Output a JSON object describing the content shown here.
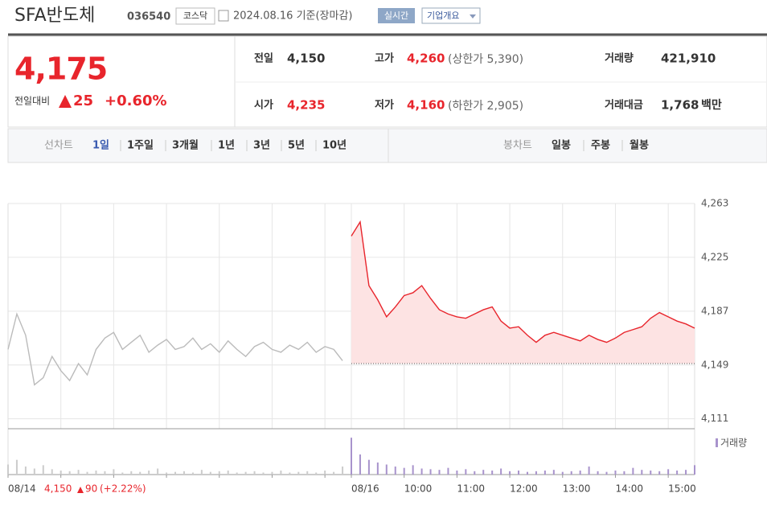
{
  "header": {
    "name": "SFA반도체",
    "code": "036540",
    "market": "코스닥",
    "date": "2024.08.16 기준(장마감)",
    "realtime": "실시간",
    "company_info": "기업개요"
  },
  "quote": {
    "price": "4,175",
    "change_label": "전일대비",
    "change": "25",
    "change_rate": "+0.60%"
  },
  "stats": [
    {
      "label": "전일",
      "value": "4,150"
    },
    {
      "label": "고가",
      "value": "4,260",
      "sub": "(상한가 5,390)"
    },
    {
      "label": "거래량",
      "value": "421,910"
    },
    {
      "label": "시가",
      "value": "4,235"
    },
    {
      "label": "저가",
      "value": "4,160",
      "sub": "(하한가 2,905)"
    },
    {
      "label": "거래대금",
      "value": "1,768",
      "unit": "백만"
    }
  ],
  "tabs": {
    "line_label": "선차트",
    "line_items": [
      "1일",
      "1주일",
      "3개월",
      "1년",
      "3년",
      "5년",
      "10년"
    ],
    "candle_label": "봉차트",
    "candle_items": [
      "일봉",
      "주봉",
      "월봉"
    ]
  },
  "chart_data": {
    "type": "line",
    "xlim": [
      0,
      780
    ],
    "ylim": [
      4104,
      4263
    ],
    "xticks": [
      {
        "value": 0,
        "label": "08/14"
      },
      {
        "value": 60,
        "label": null
      },
      {
        "value": 120,
        "label": null
      },
      {
        "value": 180,
        "label": null
      },
      {
        "value": 240,
        "label": null
      },
      {
        "value": 300,
        "label": null
      },
      {
        "value": 360,
        "label": null
      },
      {
        "value": 390,
        "label": "08/16"
      },
      {
        "value": 450,
        "label": "10:00"
      },
      {
        "value": 510,
        "label": "11:00"
      },
      {
        "value": 570,
        "label": "12:00"
      },
      {
        "value": 630,
        "label": "13:00"
      },
      {
        "value": 690,
        "label": "14:00"
      },
      {
        "value": 750,
        "label": "15:00"
      }
    ],
    "yticks": [
      {
        "value": 4263,
        "label": "4,263"
      },
      {
        "value": 4225,
        "label": "4,225"
      },
      {
        "value": 4187,
        "label": "4,187"
      },
      {
        "value": 4149,
        "label": "4,149"
      },
      {
        "value": 4111,
        "label": "4,111"
      }
    ],
    "baseline": 4150,
    "area_color": "#fde3e3",
    "series": [
      {
        "color": "#bbbbbb",
        "x": [
          0,
          10,
          20,
          30,
          40,
          50,
          60,
          70,
          80,
          90,
          100,
          110,
          120,
          130,
          140,
          150,
          160,
          170,
          180,
          190,
          200,
          210,
          220,
          230,
          240,
          250,
          260,
          270,
          280,
          290,
          300,
          310,
          320,
          330,
          340,
          350,
          360,
          370,
          380
        ],
        "values": [
          4160,
          4185,
          4170,
          4135,
          4140,
          4155,
          4145,
          4138,
          4150,
          4142,
          4160,
          4168,
          4172,
          4160,
          4165,
          4170,
          4158,
          4163,
          4167,
          4160,
          4162,
          4168,
          4160,
          4164,
          4158,
          4166,
          4160,
          4155,
          4162,
          4165,
          4160,
          4158,
          4163,
          4160,
          4165,
          4158,
          4162,
          4160,
          4152
        ]
      },
      {
        "color": "#e8252c",
        "x": [
          390,
          400,
          410,
          420,
          430,
          440,
          450,
          460,
          470,
          480,
          490,
          500,
          510,
          520,
          530,
          540,
          550,
          560,
          570,
          580,
          590,
          600,
          610,
          620,
          630,
          640,
          650,
          660,
          670,
          680,
          690,
          700,
          710,
          720,
          730,
          740,
          750,
          760,
          770,
          780
        ],
        "values": [
          4240,
          4250,
          4205,
          4195,
          4183,
          4190,
          4198,
          4200,
          4205,
          4196,
          4188,
          4185,
          4183,
          4182,
          4185,
          4188,
          4190,
          4180,
          4175,
          4176,
          4170,
          4165,
          4170,
          4172,
          4170,
          4168,
          4166,
          4170,
          4167,
          4165,
          4168,
          4172,
          4174,
          4176,
          4182,
          4186,
          4183,
          4180,
          4178,
          4175
        ]
      }
    ],
    "volume": {
      "name": "거래량",
      "vlim": [
        0,
        60000
      ],
      "series": [
        {
          "color": "#cccccc",
          "values": [
            15000,
            22000,
            12000,
            9000,
            14000,
            8000,
            6000,
            5000,
            7000,
            4000,
            6000,
            5000,
            8000,
            3000,
            5000,
            4000,
            6000,
            9000,
            3000,
            4000,
            5000,
            3000,
            7000,
            4000,
            5000,
            6000,
            3000,
            4000,
            5000,
            3000,
            4000,
            6000,
            3000,
            4000,
            5000,
            3000,
            6000,
            4000,
            12000
          ]
        },
        {
          "color": "#a893cc",
          "values": [
            55000,
            30000,
            22000,
            18000,
            15000,
            12000,
            10000,
            14000,
            9000,
            8000,
            7000,
            10000,
            6000,
            8000,
            5000,
            7000,
            6000,
            9000,
            5000,
            6000,
            4000,
            5000,
            6000,
            7000,
            4000,
            5000,
            6000,
            12000,
            5000,
            4000,
            6000,
            5000,
            10000,
            7000,
            6000,
            5000,
            8000,
            6000,
            7000,
            14000
          ]
        }
      ]
    },
    "prev_day": {
      "close": "4,150",
      "change": "90",
      "rate": "(+2.22%)"
    }
  }
}
